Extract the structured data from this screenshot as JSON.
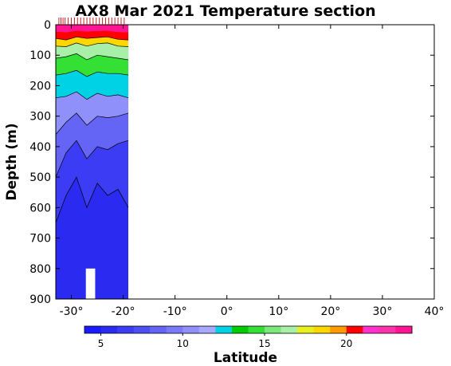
{
  "chart_data": {
    "type": "heatmap",
    "title": "AX8 Mar 2021 Temperature section",
    "xlabel": "Latitude",
    "ylabel": "Depth (m)",
    "xlim": [
      -33,
      40
    ],
    "ylim": [
      900,
      0
    ],
    "x_ticks": [
      -30,
      -20,
      -10,
      0,
      10,
      20,
      30,
      40
    ],
    "x_tick_labels": [
      "-30°",
      "-20°",
      "-10°",
      "0°",
      "10°",
      "20°",
      "30°",
      "40°"
    ],
    "y_ticks": [
      0,
      100,
      200,
      300,
      400,
      500,
      600,
      700,
      800,
      900
    ],
    "y_tick_labels": [
      "0",
      "100",
      "200",
      "300",
      "400",
      "500",
      "600",
      "700",
      "800",
      "900"
    ],
    "colorbar": {
      "min": 4,
      "max": 24,
      "ticks": [
        5,
        10,
        15,
        20
      ],
      "tick_labels": [
        "5",
        "10",
        "15",
        "20"
      ],
      "colors": [
        "#1a1aff",
        "#2a2af0",
        "#3c3cf5",
        "#4e4ef5",
        "#6464f5",
        "#7a7af8",
        "#9090fb",
        "#a8a8fc",
        "#00d2e6",
        "#00cc00",
        "#33e033",
        "#7ae87a",
        "#a8f0a8",
        "#e8f020",
        "#ffd700",
        "#ff9900",
        "#ff0000",
        "#ff33cc",
        "#ff33aa",
        "#ff1493"
      ]
    },
    "data_extent": {
      "lat": [
        -33,
        -19
      ],
      "depth": [
        0,
        900
      ]
    },
    "isotherm_depths": [
      {
        "temp": 20,
        "lat": [
          -33,
          -31,
          -29,
          -27,
          -25,
          -23,
          -21,
          -19
        ],
        "depth": [
          45,
          50,
          40,
          45,
          42,
          40,
          48,
          50
        ]
      },
      {
        "temp": 18,
        "lat": [
          -33,
          -31,
          -29,
          -27,
          -25,
          -23,
          -21,
          -19
        ],
        "depth": [
          70,
          72,
          60,
          70,
          62,
          60,
          70,
          72
        ]
      },
      {
        "temp": 16,
        "lat": [
          -33,
          -31,
          -29,
          -27,
          -25,
          -23,
          -21,
          -19
        ],
        "depth": [
          110,
          105,
          95,
          115,
          100,
          105,
          110,
          115
        ]
      },
      {
        "temp": 14,
        "lat": [
          -33,
          -31,
          -29,
          -27,
          -25,
          -23,
          -21,
          -19
        ],
        "depth": [
          165,
          160,
          150,
          170,
          155,
          160,
          160,
          165
        ]
      },
      {
        "temp": 12,
        "lat": [
          -33,
          -31,
          -29,
          -27,
          -25,
          -23,
          -21,
          -19
        ],
        "depth": [
          240,
          235,
          220,
          245,
          225,
          235,
          230,
          240
        ]
      },
      {
        "temp": 10,
        "lat": [
          -33,
          -31,
          -29,
          -27,
          -25,
          -23,
          -21,
          -19
        ],
        "depth": [
          360,
          320,
          290,
          330,
          300,
          305,
          300,
          290
        ]
      },
      {
        "temp": 8,
        "lat": [
          -33,
          -31,
          -29,
          -27,
          -25,
          -23,
          -21,
          -19
        ],
        "depth": [
          500,
          420,
          380,
          440,
          400,
          410,
          390,
          380
        ]
      },
      {
        "temp": 6,
        "lat": [
          -33,
          -31,
          -29,
          -27,
          -25,
          -23,
          -21,
          -19
        ],
        "depth": [
          650,
          560,
          500,
          600,
          520,
          560,
          540,
          600
        ]
      }
    ],
    "station_marks_lat": [
      -32.4,
      -32,
      -31.6,
      -31.2,
      -30.6,
      -30,
      -29.4,
      -28.8,
      -28.2,
      -27.6,
      -27,
      -26.4,
      -25.8,
      -25.2,
      -24.6,
      -24,
      -23.4,
      -22.8,
      -22.2,
      -21.6,
      -21,
      -20.4,
      -19.8
    ],
    "grid": false
  }
}
